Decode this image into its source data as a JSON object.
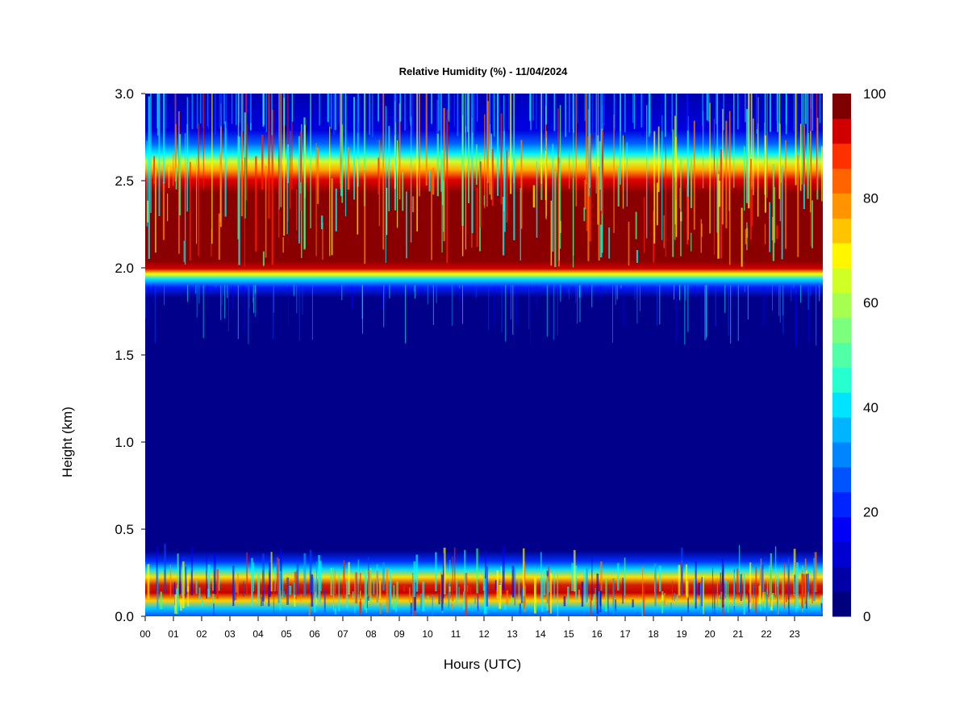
{
  "chart_data": {
    "type": "heatmap",
    "title": "Relative Humidity (%) - 11/04/2024",
    "xlabel": "Hours (UTC)",
    "ylabel": "Height (km)",
    "xlim": [
      0,
      24
    ],
    "ylim": [
      0.0,
      3.0
    ],
    "x_ticks": [
      "00",
      "01",
      "02",
      "03",
      "04",
      "05",
      "06",
      "07",
      "08",
      "09",
      "10",
      "11",
      "12",
      "13",
      "14",
      "15",
      "16",
      "17",
      "18",
      "19",
      "20",
      "21",
      "22",
      "23"
    ],
    "y_ticks": [
      "0.0",
      "0.5",
      "1.0",
      "1.5",
      "2.0",
      "2.5",
      "3.0"
    ],
    "colorbar": {
      "range": [
        0,
        100
      ],
      "levels": 20,
      "ticks": [
        "0",
        "20",
        "40",
        "60",
        "80",
        "100"
      ],
      "colors": [
        "#00007f",
        "#0000a6",
        "#0000d0",
        "#0000f6",
        "#0024ff",
        "#0054ff",
        "#0084ff",
        "#00b4ff",
        "#00e4ff",
        "#26ffd0",
        "#50ffa6",
        "#7cff7c",
        "#a6ff50",
        "#d0ff26",
        "#fff600",
        "#ffc400",
        "#ff9400",
        "#ff6400",
        "#ff3000",
        "#d00000",
        "#7f0000"
      ]
    },
    "layers": [
      {
        "height_range_km": [
          0.0,
          0.3
        ],
        "rh_percent": "40-100",
        "description": "variable"
      },
      {
        "height_range_km": [
          0.3,
          1.9
        ],
        "rh_percent": "0-5"
      },
      {
        "height_range_km": [
          1.9,
          2.0
        ],
        "rh_percent": "20-80"
      },
      {
        "height_range_km": [
          2.0,
          2.5
        ],
        "rh_percent": "80-100"
      },
      {
        "height_range_km": [
          2.5,
          2.75
        ],
        "rh_percent": "20-80"
      },
      {
        "height_range_km": [
          2.75,
          3.0
        ],
        "rh_percent": "0-20"
      }
    ]
  }
}
